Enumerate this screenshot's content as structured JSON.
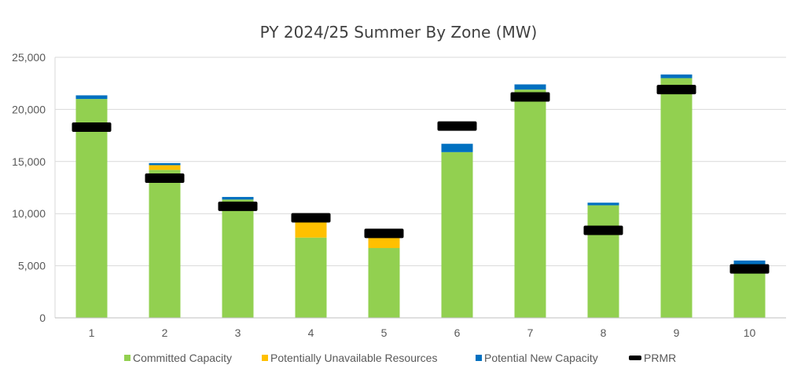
{
  "chart_data": {
    "type": "bar",
    "stacked": true,
    "title": "PY 2024/25 Summer By Zone (MW)",
    "xlabel": "",
    "ylabel": "",
    "categories": [
      "1",
      "2",
      "3",
      "4",
      "5",
      "6",
      "7",
      "8",
      "9",
      "10"
    ],
    "ylim": [
      0,
      25000
    ],
    "yticks": [
      0,
      5000,
      10000,
      15000,
      20000,
      25000
    ],
    "ytick_labels": [
      "0",
      "5,000",
      "10,000",
      "15,000",
      "20,000",
      "25,000"
    ],
    "grid": true,
    "legend_position": "bottom",
    "series": [
      {
        "name": "Committed Capacity",
        "color": "#92d050",
        "values": [
          21000,
          14200,
          11350,
          7700,
          6700,
          15900,
          21900,
          10800,
          23000,
          4400
        ]
      },
      {
        "name": "Potentially Unavailable Resources",
        "color": "#ffc000",
        "values": [
          0,
          450,
          0,
          1900,
          1000,
          0,
          0,
          0,
          0,
          0
        ]
      },
      {
        "name": "Potential New Capacity",
        "color": "#0070c0",
        "values": [
          350,
          200,
          250,
          0,
          0,
          800,
          500,
          250,
          350,
          1100
        ]
      }
    ],
    "markers": {
      "name": "PRMR",
      "color": "#000000",
      "values": [
        18300,
        13400,
        10700,
        9600,
        8100,
        18400,
        21200,
        8400,
        21900,
        4700
      ]
    }
  }
}
